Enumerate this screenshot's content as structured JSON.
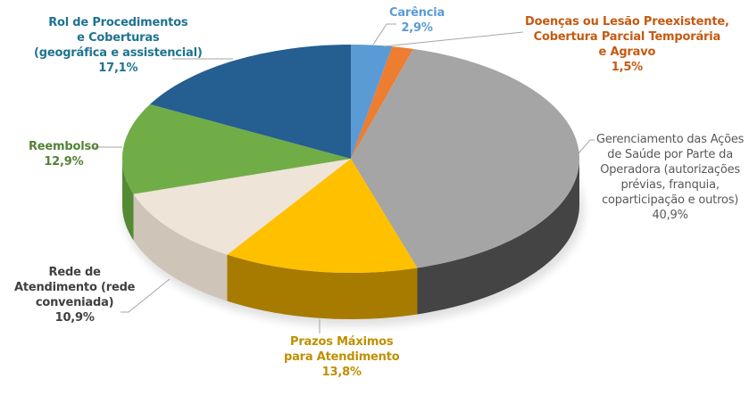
{
  "chart_data": {
    "type": "pie",
    "style": "3d",
    "title": "",
    "start_angle_deg": 0,
    "direction": "clockwise",
    "slices": [
      {
        "label": "Carência",
        "value": 2.9,
        "value_label": "2,9%",
        "color": "#5B9BD5",
        "side_color": "#3f77ad",
        "label_color": "#5B9BD5"
      },
      {
        "label": "Doenças ou Lesão Preexistente, Cobertura Parcial Temporária e Agravo",
        "value": 1.5,
        "value_label": "1,5%",
        "color": "#ED7D31",
        "side_color": "#b85d1f",
        "label_color": "#C55A11"
      },
      {
        "label": "Gerenciamento das Ações de Saúde por Parte da Operadora (autorizações prévias, franquia, coparticipação e outros)",
        "value": 40.9,
        "value_label": "40,9%",
        "color": "#A5A5A5",
        "side_color": "#444444",
        "label_color": "#595959"
      },
      {
        "label": "Prazos Máximos para Atendimento",
        "value": 13.8,
        "value_label": "13,8%",
        "color": "#FFC000",
        "side_color": "#a77b00",
        "label_color": "#BF9000"
      },
      {
        "label": "Rede de Atendimento (rede conveniada)",
        "value": 10.9,
        "value_label": "10,9%",
        "color": "#EEE4D8",
        "side_color": "#cfc4b8",
        "label_color": "#404040"
      },
      {
        "label": "Reembolso",
        "value": 12.9,
        "value_label": "12,9%",
        "color": "#70AD47",
        "side_color": "#548a33",
        "label_color": "#548235"
      },
      {
        "label": "Rol de Procedimentos e Coberturas (geográfica e assistencial)",
        "value": 17.1,
        "value_label": "17,1%",
        "color": "#255E91",
        "side_color": "#1a4670",
        "label_color": "#1F7391"
      }
    ],
    "legend": "none",
    "data_labels": "outside with leader lines"
  },
  "labels": {
    "carencia": {
      "lines": [
        "Carência"
      ],
      "pct": "2,9%"
    },
    "doencas": {
      "lines": [
        "Doenças ou Lesão Preexistente,",
        "Cobertura Parcial Temporária",
        "e Agravo"
      ],
      "pct": "1,5%"
    },
    "gerenciamento": {
      "lines": [
        "Gerenciamento das Ações",
        "de Saúde por Parte da",
        "Operadora (autorizações",
        "prévias, franquia,",
        "coparticipação e outros)"
      ],
      "pct": "40,9%"
    },
    "prazos": {
      "lines": [
        "Prazos Máximos",
        "para Atendimento"
      ],
      "pct": "13,8%"
    },
    "rede": {
      "lines": [
        "Rede de",
        "Atendimento (rede",
        "conveniada)"
      ],
      "pct": "10,9%"
    },
    "reembolso": {
      "lines": [
        "Reembolso"
      ],
      "pct": "12,9%"
    },
    "rol": {
      "lines": [
        "Rol de Procedimentos",
        "e Coberturas",
        "(geográfica e assistencial)"
      ],
      "pct": "17,1%"
    }
  }
}
